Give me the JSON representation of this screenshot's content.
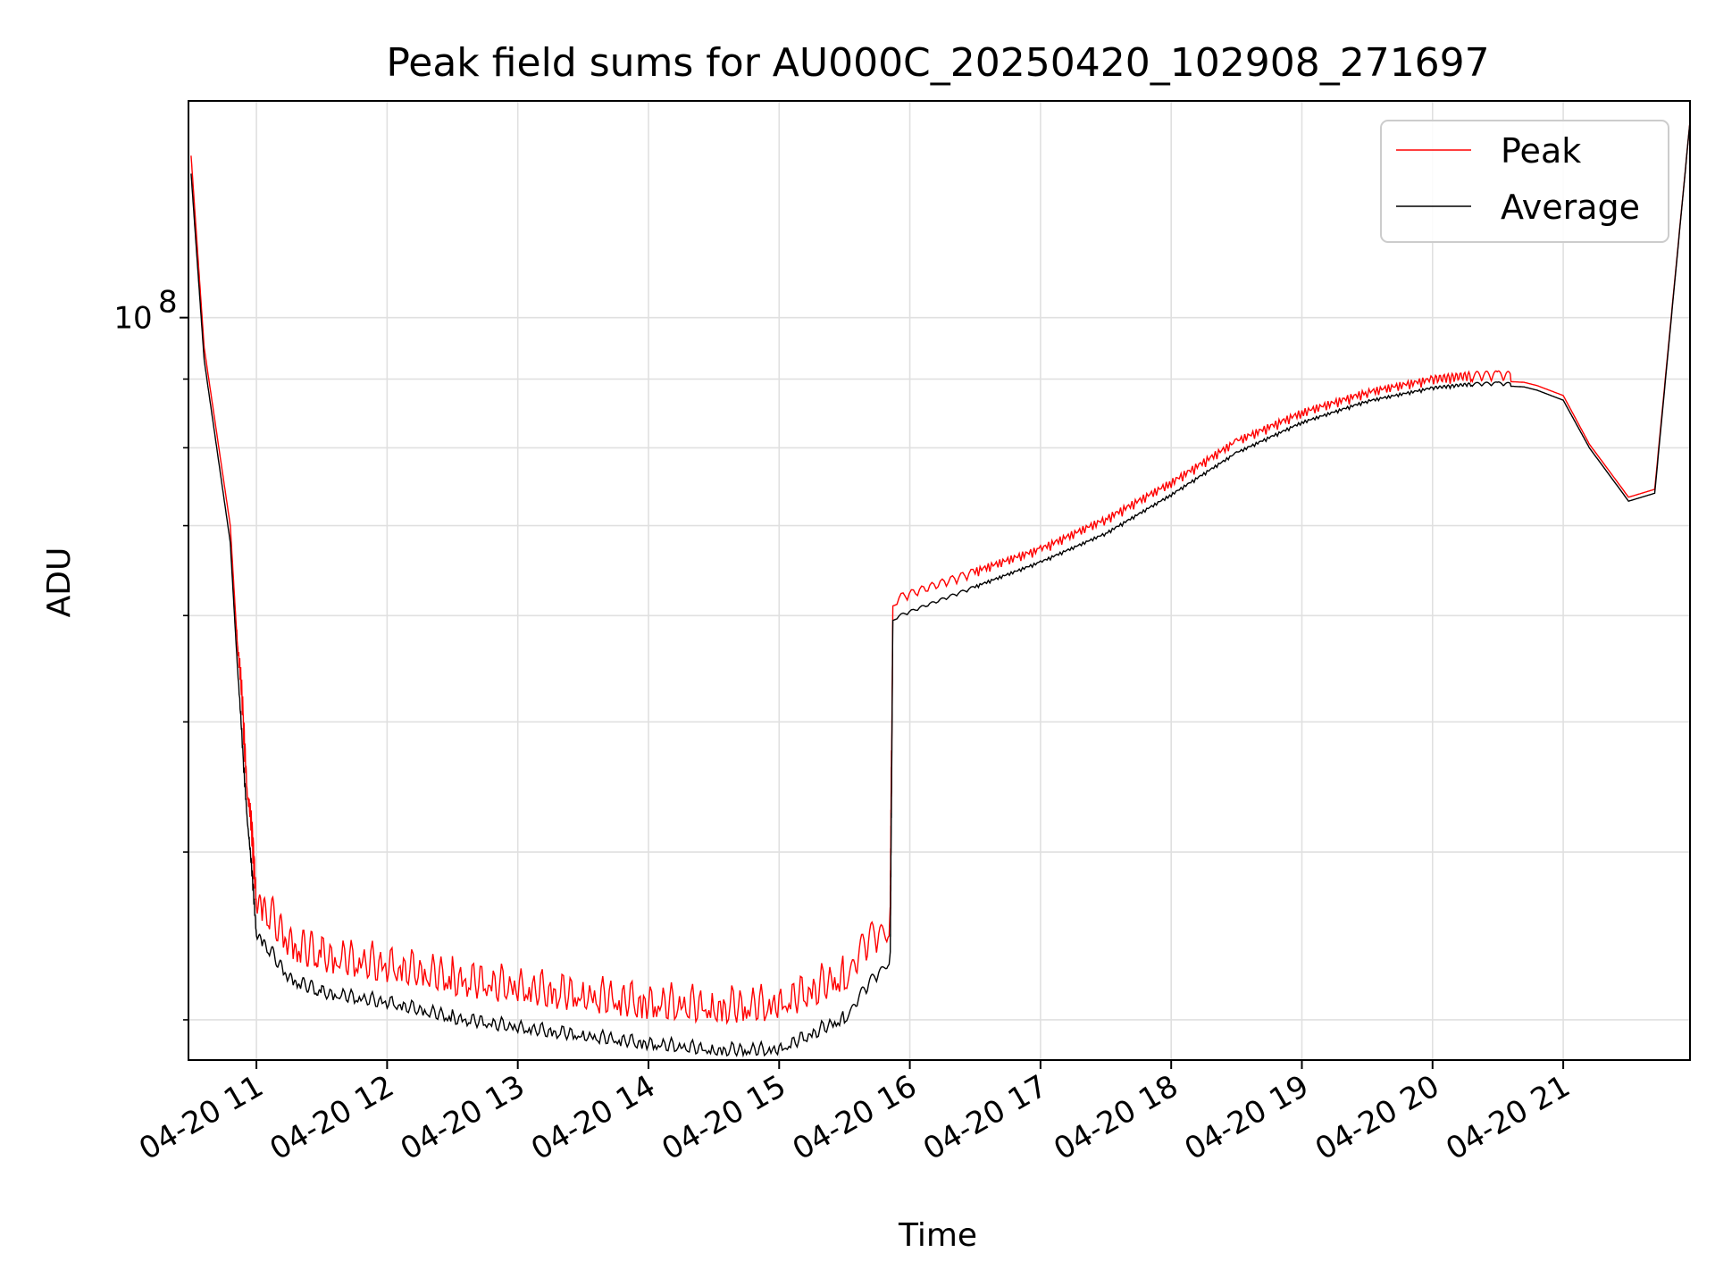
{
  "chart_data": {
    "type": "line",
    "title": "Peak field sums for AU000C_20250420_102908_271697",
    "xlabel": "Time",
    "ylabel": "ADU",
    "yscale": "log",
    "grid": true,
    "legend_position": "top-right",
    "x_tick_labels": [
      "04-20 11",
      "04-20 12",
      "04-20 13",
      "04-20 14",
      "04-20 15",
      "04-20 16",
      "04-20 17",
      "04-20 18",
      "04-20 19",
      "04-20 20",
      "04-20 21"
    ],
    "y_tick_labels": [
      {
        "base": "10",
        "exp": "8"
      }
    ],
    "x_hours": [
      10.5,
      10.6,
      10.8,
      10.9,
      11.0,
      11.25,
      11.5,
      12.0,
      12.5,
      13.0,
      13.5,
      14.0,
      14.5,
      15.0,
      15.5,
      15.85,
      15.87,
      16.5,
      17.0,
      17.5,
      18.0,
      18.5,
      19.0,
      19.5,
      20.0,
      20.3,
      20.5,
      20.7,
      20.8,
      21.0
    ],
    "ylim": [
      28000000,
      145000000
    ],
    "xlim": [
      10.48,
      21.97
    ],
    "series": [
      {
        "name": "Peak",
        "color": "#ff0000",
        "values": [
          132000000,
          95000000,
          70000000,
          48000000,
          36000000,
          33300000,
          32500000,
          32000000,
          31300000,
          30800000,
          30400000,
          30000000,
          29800000,
          29900000,
          31500000,
          34500000,
          61000000,
          64000000,
          66500000,
          70000000,
          74500000,
          80000000,
          84000000,
          87000000,
          89000000,
          89600000,
          89700000,
          89500000,
          89000000,
          87500000
        ]
      },
      {
        "name": "Average",
        "color": "#000000",
        "values": [
          128000000,
          93000000,
          68000000,
          46000000,
          34500000,
          31900000,
          31100000,
          30600000,
          29800000,
          29300000,
          28900000,
          28500000,
          28200000,
          28200000,
          29800000,
          33000000,
          59500000,
          62800000,
          65500000,
          68800000,
          73500000,
          79000000,
          83200000,
          86300000,
          88300000,
          88900000,
          89000000,
          88800000,
          88300000,
          86800000
        ]
      }
    ],
    "tail": {
      "x_hours": [
        21.2,
        21.5,
        21.7,
        21.97
      ],
      "peak": [
        80500000,
        73500000,
        74500000,
        140000000
      ],
      "average": [
        80000000,
        73000000,
        74000000,
        140000000
      ]
    }
  }
}
